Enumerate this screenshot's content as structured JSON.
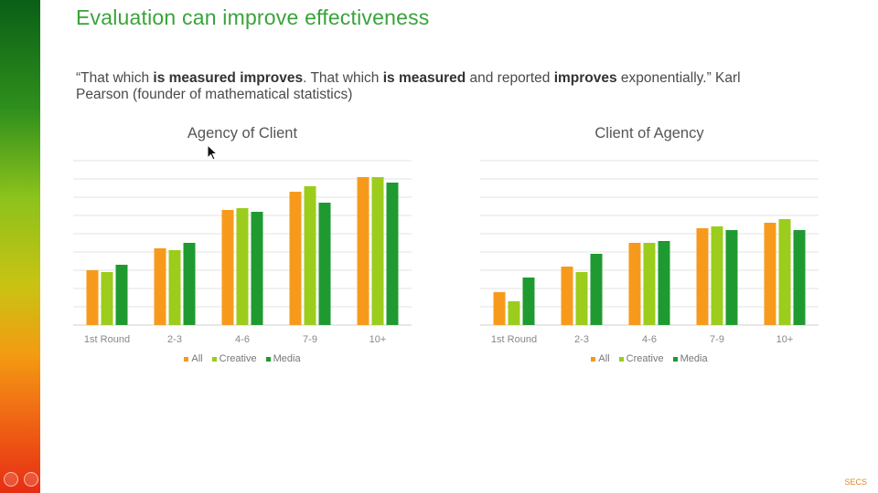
{
  "slide": {
    "title": "Evaluation can improve effectiveness",
    "quote": {
      "parts": [
        {
          "text": "“That which ",
          "bold": false
        },
        {
          "text": "is measured improves",
          "bold": true
        },
        {
          "text": ". That which ",
          "bold": false
        },
        {
          "text": "is measured",
          "bold": true
        },
        {
          "text": " and reported ",
          "bold": false
        },
        {
          "text": "improves",
          "bold": true
        },
        {
          "text": " exponentially.” Karl Pearson (founder of mathematical statistics)",
          "bold": false
        }
      ]
    },
    "corner_label": "SECS"
  },
  "colors": {
    "All": "#f79a1c",
    "Creative": "#9ccc1c",
    "Media": "#1f9a30",
    "grid": "#e3e3e3",
    "axis": "#cfcfcf"
  },
  "chart_data": [
    {
      "type": "bar",
      "title": "Agency of Client",
      "categories": [
        "1st Round",
        "2-3",
        "4-6",
        "7-9",
        "10+"
      ],
      "series": [
        {
          "name": "All",
          "values": [
            3.0,
            4.2,
            6.3,
            7.3,
            8.1
          ]
        },
        {
          "name": "Creative",
          "values": [
            2.9,
            4.1,
            6.4,
            7.6,
            8.1
          ]
        },
        {
          "name": "Media",
          "values": [
            3.3,
            4.5,
            6.2,
            6.7,
            7.8
          ]
        }
      ],
      "ylim": [
        0,
        10
      ],
      "grid": true,
      "legend": "bottom"
    },
    {
      "type": "bar",
      "title": "Client of Agency",
      "categories": [
        "1st Round",
        "2-3",
        "4-6",
        "7-9",
        "10+"
      ],
      "series": [
        {
          "name": "All",
          "values": [
            1.8,
            3.2,
            4.5,
            5.3,
            5.6
          ]
        },
        {
          "name": "Creative",
          "values": [
            1.3,
            2.9,
            4.5,
            5.4,
            5.8
          ]
        },
        {
          "name": "Media",
          "values": [
            2.6,
            3.9,
            4.6,
            5.2,
            5.2
          ]
        }
      ],
      "ylim": [
        0,
        10
      ],
      "grid": true,
      "legend": "bottom"
    }
  ]
}
